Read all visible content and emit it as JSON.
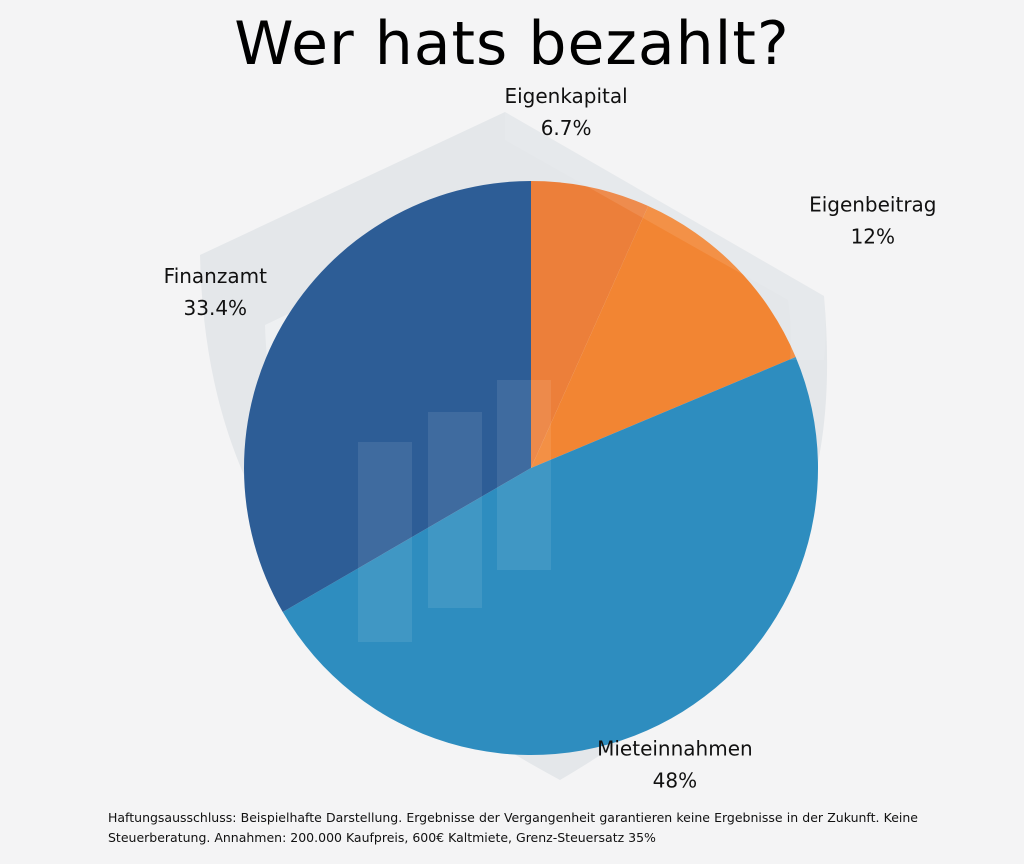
{
  "title": "Wer hats bezahlt?",
  "disclaimer": "Haftungsausschluss: Beispielhafte Darstellung. Ergebnisse  der Vergangenheit garantieren keine Ergebnisse in der Zukunft. Keine Steuerberatung. Annahmen: 200.000 Kaufpreis, 600€ Kaltmiete, Grenz-Steuersatz 35%",
  "chart_data": {
    "type": "pie",
    "title": "Wer hats bezahlt?",
    "start": "top",
    "direction": "clockwise",
    "slices": [
      {
        "label": "Eigenkapital",
        "value": 6.7,
        "value_label": "6.7%",
        "color": "#ec7f3a"
      },
      {
        "label": "Eigenbeitrag",
        "value": 12,
        "value_label": "12%",
        "color": "#f28533"
      },
      {
        "label": "Mieteinnahmen",
        "value": 48,
        "value_label": "48%",
        "color": "#2e8dbf"
      },
      {
        "label": "Finanzamt",
        "value": 33.4,
        "value_label": "33.4%",
        "color": "#2d5d96"
      }
    ],
    "watermark": {
      "type": "shield-with-bar-chart",
      "color": "#e4e7ea"
    }
  }
}
